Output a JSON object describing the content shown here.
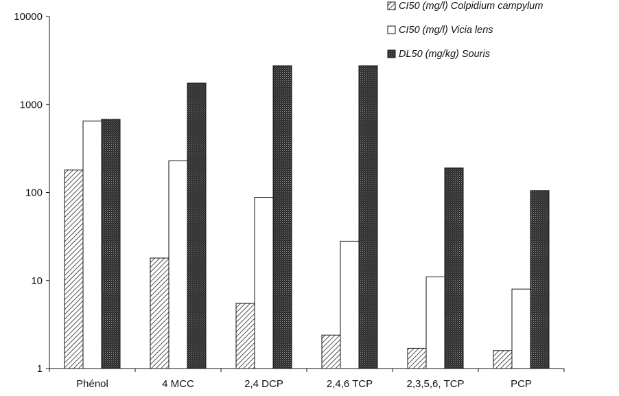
{
  "chart_data": {
    "type": "bar",
    "y_scale": "log",
    "ylim": [
      1,
      10000
    ],
    "y_ticks": [
      "1",
      "10",
      "100",
      "1000",
      "10000"
    ],
    "grid": false,
    "legend_position": "top-right",
    "categories": [
      "Phénol",
      "4 MCC",
      "2,4 DCP",
      "2,4,6 TCP",
      "2,3,5,6, TCP",
      "PCP"
    ],
    "series": [
      {
        "name": "CI50 (mg/l) Colpidium campylum",
        "pattern": "hatched",
        "values": [
          180,
          18,
          5.5,
          2.4,
          1.7,
          1.6
        ]
      },
      {
        "name": "CI50 (mg/l) Vicia lens",
        "pattern": "white",
        "values": [
          650,
          230,
          88,
          28,
          11,
          8
        ]
      },
      {
        "name": "DL50 (mg/kg) Souris",
        "pattern": "dark-dotted",
        "values": [
          680,
          1750,
          2750,
          2750,
          190,
          105
        ]
      }
    ],
    "title": "",
    "xlabel": "",
    "ylabel": ""
  }
}
